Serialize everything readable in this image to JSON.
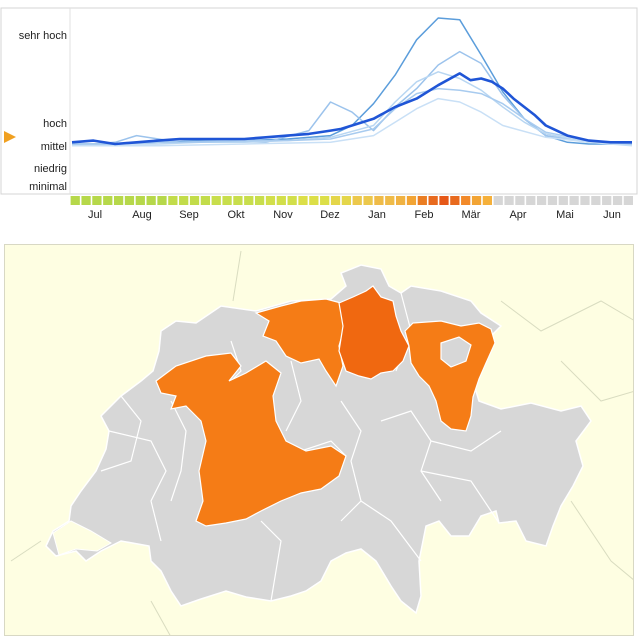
{
  "chart_data": {
    "type": "line",
    "title": "",
    "xlabel": "",
    "ylabel": "",
    "y_levels": [
      "minimal",
      "niedrig",
      "mittel",
      "hoch",
      "sehr hoch"
    ],
    "current_level": "mittel",
    "x_ticks": [
      "Jul",
      "Aug",
      "Sep",
      "Okt",
      "Nov",
      "Dez",
      "Jan",
      "Feb",
      "Mär",
      "Apr",
      "Mai",
      "Jun"
    ],
    "x_range_weeks": [
      0,
      52
    ],
    "y_scale": [
      0,
      100
    ],
    "grid": false,
    "legend": "none",
    "week_bar": [
      "#b6d84a",
      "#b6d84a",
      "#b6d84a",
      "#b6d84a",
      "#b6d84a",
      "#b6d84a",
      "#b6d84a",
      "#b6d84a",
      "#b6d84a",
      "#c2dc4a",
      "#c2dc4a",
      "#c2dc4a",
      "#c2dc4a",
      "#c8de4c",
      "#c8de4c",
      "#c8de4c",
      "#c8de4c",
      "#c8de4c",
      "#d2df4a",
      "#d2df4a",
      "#d2df4a",
      "#dcdf48",
      "#dcdf48",
      "#dcdf48",
      "#e4d64a",
      "#e4d64a",
      "#ecc84c",
      "#ecc84c",
      "#efbb48",
      "#efbb48",
      "#f0b242",
      "#f2a434",
      "#ea7d22",
      "#e86a1e",
      "#e65818",
      "#e86a1e",
      "#f28a2a",
      "#f2a434",
      "#f5b03a",
      "#d6d6d6",
      "#d6d6d6",
      "#d6d6d6",
      "#d6d6d6",
      "#d6d6d6",
      "#d6d6d6",
      "#d6d6d6",
      "#d6d6d6",
      "#d6d6d6",
      "#d6d6d6",
      "#d6d6d6",
      "#d6d6d6",
      "#d6d6d6"
    ],
    "series": [
      {
        "emphasis": true,
        "color": "#1f55d6",
        "x": [
          0,
          2,
          4,
          6,
          8,
          10,
          12,
          14,
          16,
          18,
          20,
          22,
          24,
          25,
          26,
          28,
          30,
          32,
          34,
          36,
          37,
          38,
          39,
          40,
          41,
          42,
          43,
          44,
          46,
          48,
          50,
          52
        ],
        "y": [
          26,
          27,
          25,
          26,
          27,
          28,
          28,
          28,
          28,
          29,
          30,
          31,
          33,
          34,
          36,
          40,
          47,
          52,
          60,
          67,
          63,
          64,
          62,
          58,
          52,
          47,
          42,
          36,
          30,
          27,
          26,
          26
        ]
      },
      {
        "emphasis": false,
        "color": "#5b9ddb",
        "x": [
          0,
          4,
          8,
          12,
          16,
          20,
          24,
          26,
          28,
          30,
          32,
          34,
          36,
          38,
          40,
          42,
          44,
          46,
          48,
          52
        ],
        "y": [
          25,
          25,
          26,
          27,
          27,
          28,
          30,
          36,
          49,
          66,
          87,
          100,
          99,
          78,
          56,
          40,
          30,
          26,
          25,
          25
        ]
      },
      {
        "emphasis": false,
        "color": "#9cc3ec",
        "x": [
          0,
          4,
          6,
          10,
          14,
          18,
          22,
          24,
          26,
          28,
          30,
          32,
          34,
          36,
          38,
          40,
          42,
          44,
          48,
          52
        ],
        "y": [
          24,
          26,
          30,
          26,
          27,
          26,
          33,
          50,
          44,
          33,
          47,
          58,
          72,
          80,
          73,
          54,
          40,
          30,
          26,
          25
        ]
      },
      {
        "emphasis": false,
        "color": "#b8d6f2",
        "x": [
          0,
          4,
          8,
          12,
          16,
          20,
          24,
          28,
          30,
          32,
          34,
          36,
          38,
          40,
          42,
          44,
          48,
          52
        ],
        "y": [
          24,
          25,
          25,
          26,
          26,
          27,
          29,
          36,
          50,
          62,
          68,
          64,
          57,
          47,
          38,
          31,
          26,
          25
        ]
      },
      {
        "emphasis": false,
        "color": "#a8cbef",
        "x": [
          0,
          4,
          8,
          12,
          16,
          20,
          24,
          28,
          30,
          32,
          34,
          36,
          38,
          40,
          42,
          44,
          48,
          52
        ],
        "y": [
          25,
          25,
          26,
          26,
          27,
          27,
          28,
          34,
          46,
          55,
          58,
          57,
          55,
          49,
          40,
          32,
          27,
          25
        ]
      },
      {
        "emphasis": false,
        "color": "#c9e0f6",
        "x": [
          0,
          8,
          16,
          24,
          28,
          30,
          32,
          34,
          36,
          38,
          40,
          44,
          48,
          52
        ],
        "y": [
          24,
          24,
          25,
          26,
          30,
          38,
          46,
          52,
          50,
          44,
          36,
          29,
          26,
          24
        ]
      }
    ]
  }
}
